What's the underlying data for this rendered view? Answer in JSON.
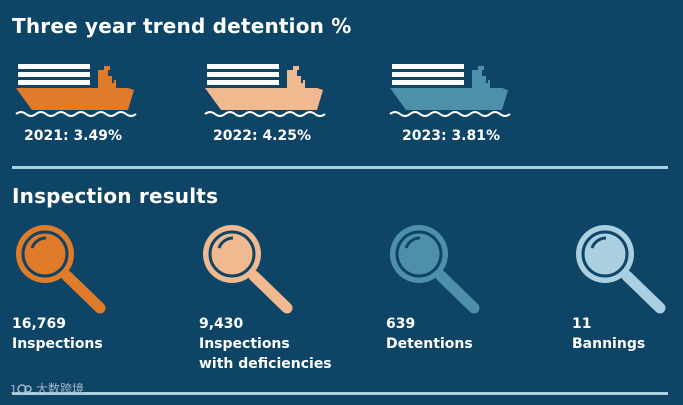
{
  "trend": {
    "title": "Three year trend detention %",
    "years": [
      {
        "label": "2021: 3.49%",
        "color": "#e07b2a"
      },
      {
        "label": "2022: 4.25%",
        "color": "#f0b990"
      },
      {
        "label": "2023: 3.81%",
        "color": "#4e90aa"
      }
    ]
  },
  "inspection": {
    "title": "Inspection results",
    "items": [
      {
        "value": "16,769",
        "label1": "Inspections",
        "label2": "",
        "color": "#e07b2a",
        "icon": "magnifier-icon"
      },
      {
        "value": "9,430",
        "label1": "Inspections",
        "label2": "with deficiencies",
        "color": "#f0b990",
        "icon": "magnifier-icon"
      },
      {
        "value": "639",
        "label1": "Detentions",
        "label2": "",
        "color": "#4e90aa",
        "icon": "magnifier-icon"
      },
      {
        "value": "11",
        "label1": "Bannings",
        "label2": "",
        "color": "#a9cfe0",
        "icon": "magnifier-icon"
      }
    ]
  },
  "watermark": {
    "text": "大数跨境"
  }
}
